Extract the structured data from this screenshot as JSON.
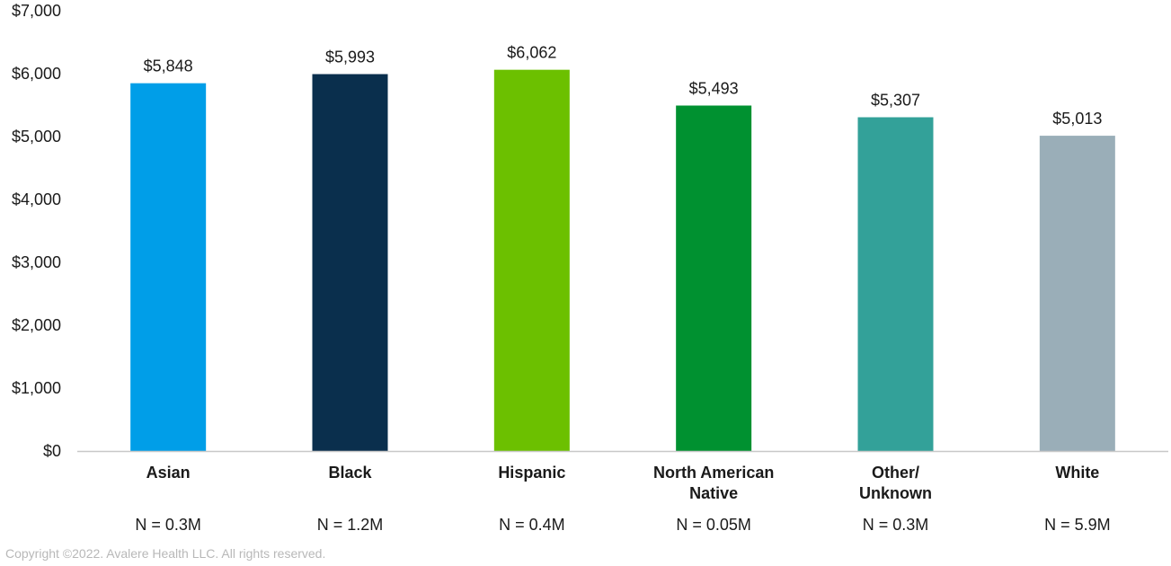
{
  "chart_data": {
    "type": "bar",
    "title": "",
    "xlabel": "",
    "ylabel": "",
    "ylim": [
      0,
      7000
    ],
    "yticks": [
      0,
      1000,
      2000,
      3000,
      4000,
      5000,
      6000,
      7000
    ],
    "ytick_labels": [
      "$0",
      "$1,000",
      "$2,000",
      "$3,000",
      "$4,000",
      "$5,000",
      "$6,000",
      "$7,000"
    ],
    "grid": false,
    "categories": [
      [
        "Asian"
      ],
      [
        "Black"
      ],
      [
        "Hispanic"
      ],
      [
        "North American",
        "Native"
      ],
      [
        "Other/",
        "Unknown"
      ],
      [
        "White"
      ]
    ],
    "values": [
      5848,
      5993,
      6062,
      5493,
      5307,
      5013
    ],
    "value_labels": [
      "$5,848",
      "$5,993",
      "$6,062",
      "$5,493",
      "$5,307",
      "$5,013"
    ],
    "sample_sizes": [
      "N = 0.3M",
      "N = 1.2M",
      "N = 0.4M",
      "N = 0.05M",
      "N = 0.3M",
      "N = 5.9M"
    ],
    "colors": [
      "#009ee8",
      "#0a2f4d",
      "#6cc000",
      "#009130",
      "#33a199",
      "#9aaeb8"
    ],
    "axis_color": "#c8c8c8"
  },
  "footer": {
    "copyright": "Copyright ©2022. Avalere Health LLC. All rights reserved."
  }
}
